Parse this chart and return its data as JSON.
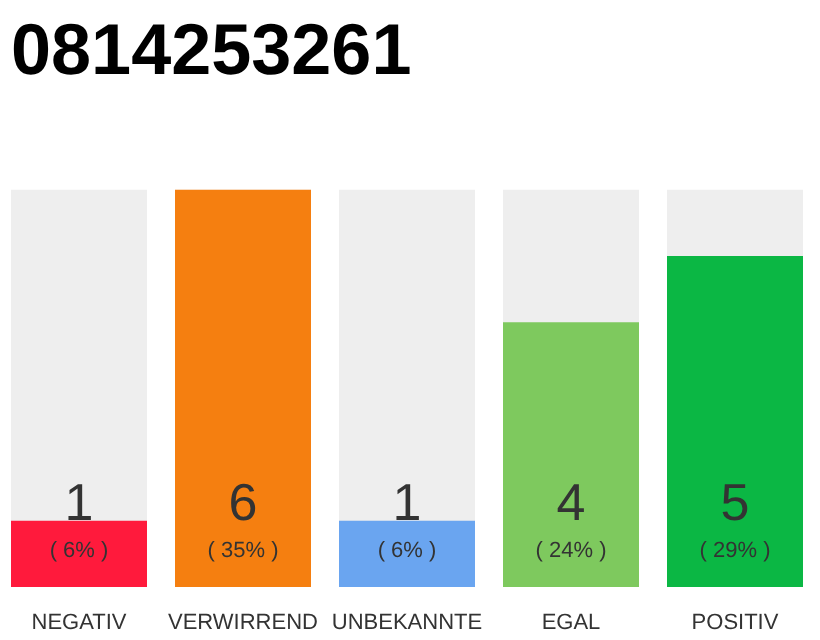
{
  "chart_data": {
    "type": "bar",
    "title": "0814253261",
    "categories": [
      "NEGATIV",
      "VERWIRREND",
      "UNBEKANNTE",
      "EGAL",
      "POSITIV"
    ],
    "values": [
      1,
      6,
      1,
      4,
      5
    ],
    "colors": [
      "#ff1a3c",
      "#f57f10",
      "#6aa5f0",
      "#7ec95e",
      "#0bb744"
    ],
    "value_labels": [
      "1",
      "6",
      "1",
      "4",
      "5"
    ],
    "annotations": [
      "( 6% )",
      "( 35% )",
      "( 6% )",
      "( 24% )",
      "( 29% )"
    ],
    "grid": false
  }
}
